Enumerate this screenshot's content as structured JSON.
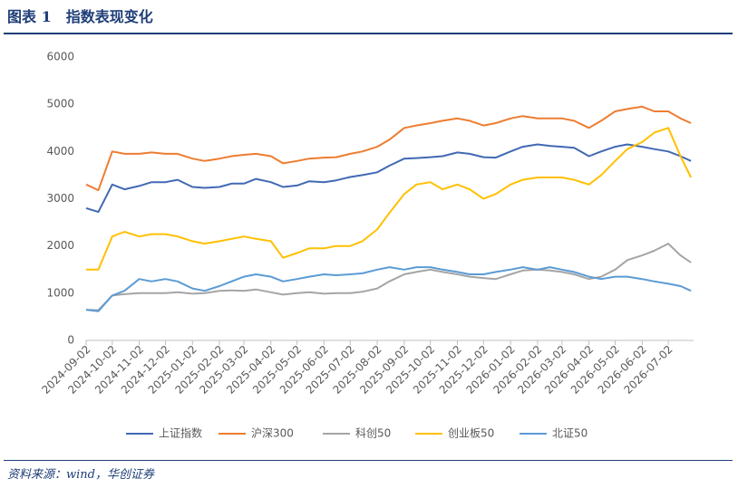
{
  "header": {
    "title": "图表 1　指数表现变化"
  },
  "chart_data": {
    "type": "line",
    "x": [
      "2024-09-02",
      "2024-09-16",
      "2024-10-02",
      "2024-10-16",
      "2024-11-02",
      "2024-11-16",
      "2024-12-02",
      "2024-12-16",
      "2025-01-02",
      "2025-01-16",
      "2025-02-02",
      "2025-02-16",
      "2025-03-02",
      "2025-03-16",
      "2025-04-02",
      "2025-04-16",
      "2025-05-02",
      "2025-05-16",
      "2025-06-02",
      "2025-06-16",
      "2025-07-02",
      "2025-07-16",
      "2025-08-02",
      "2025-08-16",
      "2025-09-02",
      "2025-09-16",
      "2025-10-02",
      "2025-10-16",
      "2025-11-02",
      "2025-11-16",
      "2025-12-02",
      "2025-12-16",
      "2026-01-02",
      "2026-01-16",
      "2026-02-02",
      "2026-02-16",
      "2026-03-02",
      "2026-03-16",
      "2026-04-02",
      "2026-04-16",
      "2026-05-02",
      "2026-05-16",
      "2026-06-02",
      "2026-06-16",
      "2026-07-02",
      "2026-07-16",
      "2026-07-28"
    ],
    "xlim": [
      "2024-09-02",
      "2026-07-31"
    ],
    "xticks": [
      "2024-09-02",
      "2024-10-02",
      "2024-11-02",
      "2024-12-02",
      "2025-01-02",
      "2025-02-02",
      "2025-03-02",
      "2025-04-02",
      "2025-05-02",
      "2025-06-02",
      "2025-07-02",
      "2025-08-02",
      "2025-09-02",
      "2025-10-02",
      "2025-11-02",
      "2025-12-02",
      "2026-01-02",
      "2026-02-02",
      "2026-03-02",
      "2026-04-02",
      "2026-05-02",
      "2026-06-02",
      "2026-07-02"
    ],
    "ylim": [
      0,
      6000
    ],
    "yticks": [
      0,
      1000,
      2000,
      3000,
      4000,
      5000,
      6000
    ],
    "grid": false,
    "legend": "bottom",
    "series": [
      {
        "name": "上证指数",
        "color": "#4169b4",
        "values": [
          2800,
          2720,
          3300,
          3200,
          3270,
          3350,
          3350,
          3400,
          3250,
          3230,
          3250,
          3320,
          3320,
          3420,
          3350,
          3250,
          3280,
          3370,
          3350,
          3390,
          3460,
          3500,
          3560,
          3700,
          3850,
          3860,
          3880,
          3900,
          3980,
          3950,
          3880,
          3870,
          4000,
          4100,
          4150,
          4120,
          4100,
          4080,
          3900,
          4000,
          4100,
          4150,
          4100,
          4050,
          4000,
          3900,
          3800
        ]
      },
      {
        "name": "沪深300",
        "color": "#ed7d31",
        "values": [
          3300,
          3180,
          4000,
          3950,
          3950,
          3980,
          3950,
          3950,
          3850,
          3800,
          3850,
          3900,
          3930,
          3950,
          3900,
          3750,
          3800,
          3850,
          3870,
          3880,
          3950,
          4000,
          4100,
          4250,
          4500,
          4550,
          4600,
          4650,
          4700,
          4650,
          4550,
          4600,
          4700,
          4750,
          4700,
          4700,
          4700,
          4650,
          4500,
          4650,
          4850,
          4900,
          4950,
          4850,
          4850,
          4700,
          4600
        ]
      },
      {
        "name": "科创50",
        "color": "#a5a5a5",
        "values": [
          650,
          640,
          950,
          980,
          1000,
          1000,
          1000,
          1020,
          990,
          1000,
          1050,
          1060,
          1050,
          1080,
          1020,
          970,
          1000,
          1020,
          990,
          1000,
          1000,
          1030,
          1100,
          1250,
          1400,
          1450,
          1500,
          1450,
          1400,
          1350,
          1320,
          1300,
          1400,
          1480,
          1500,
          1480,
          1450,
          1400,
          1300,
          1350,
          1500,
          1700,
          1800,
          1900,
          2050,
          1800,
          1650
        ]
      },
      {
        "name": "创业板50",
        "color": "#ffc000",
        "values": [
          1500,
          1500,
          2200,
          2300,
          2200,
          2250,
          2250,
          2200,
          2100,
          2050,
          2100,
          2150,
          2200,
          2150,
          2100,
          1750,
          1850,
          1950,
          1950,
          2000,
          2000,
          2100,
          2350,
          2700,
          3100,
          3300,
          3350,
          3200,
          3300,
          3200,
          3000,
          3100,
          3300,
          3400,
          3450,
          3450,
          3450,
          3400,
          3300,
          3500,
          3800,
          4050,
          4200,
          4400,
          4500,
          3900,
          3450
        ]
      },
      {
        "name": "北证50",
        "color": "#5b9bd5",
        "values": [
          650,
          620,
          950,
          1050,
          1300,
          1250,
          1300,
          1250,
          1100,
          1050,
          1150,
          1250,
          1350,
          1400,
          1350,
          1250,
          1300,
          1350,
          1400,
          1380,
          1400,
          1420,
          1500,
          1550,
          1500,
          1550,
          1550,
          1500,
          1450,
          1400,
          1400,
          1450,
          1500,
          1550,
          1500,
          1550,
          1500,
          1450,
          1350,
          1300,
          1350,
          1350,
          1300,
          1250,
          1200,
          1150,
          1050
        ]
      }
    ]
  },
  "footer": {
    "source": "资料来源：wind，华创证券"
  }
}
